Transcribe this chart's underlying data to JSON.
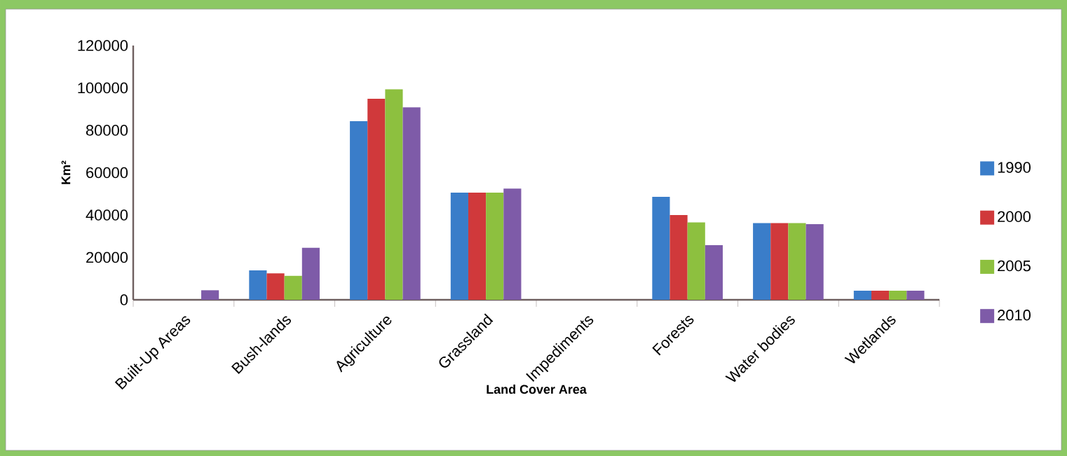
{
  "chart_data": {
    "type": "bar",
    "xlabel": "Land Cover Area",
    "ylabel": "Km²",
    "categories": [
      "Built-Up Areas",
      "Bush-lands",
      "Agriculture",
      "Grassland",
      "Impediments",
      "Forests",
      "Water bodies",
      "Wetlands"
    ],
    "series": [
      {
        "name": "1990",
        "color": "#3a7dc9",
        "values": [
          0,
          13900,
          84300,
          50600,
          0,
          48600,
          36200,
          4300
        ]
      },
      {
        "name": "2000",
        "color": "#d0393b",
        "values": [
          0,
          12500,
          94900,
          50600,
          0,
          40000,
          36200,
          4300
        ]
      },
      {
        "name": "2005",
        "color": "#8dc03f",
        "values": [
          0,
          11300,
          99300,
          50600,
          0,
          36500,
          36200,
          4300
        ]
      },
      {
        "name": "2010",
        "color": "#7e5ba8",
        "values": [
          4500,
          24500,
          90800,
          52500,
          0,
          25800,
          35700,
          4300
        ]
      }
    ],
    "ylim": [
      0,
      120000
    ],
    "yticks": [
      0,
      20000,
      40000,
      60000,
      80000,
      100000,
      120000
    ],
    "legend": "right"
  }
}
